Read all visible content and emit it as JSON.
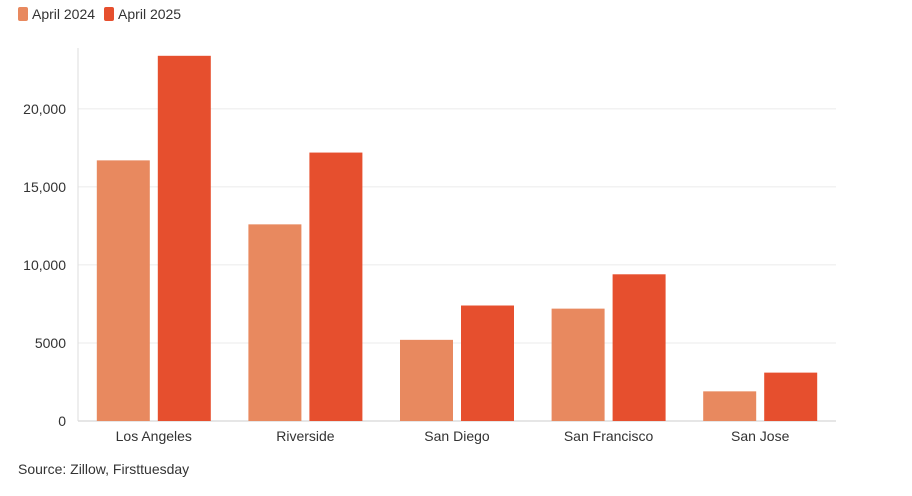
{
  "legend": [
    {
      "label": "April 2024",
      "color": "#e8895f"
    },
    {
      "label": "April 2025",
      "color": "#e64f2e"
    }
  ],
  "source": "Source: Zillow, Firsttuesday",
  "chart_data": {
    "type": "bar",
    "categories": [
      "Los Angeles",
      "Riverside",
      "San Diego",
      "San Francisco",
      "San Jose"
    ],
    "series": [
      {
        "name": "April 2024",
        "values": [
          16700,
          12600,
          5200,
          7200,
          1900
        ],
        "color": "#e8895f"
      },
      {
        "name": "April 2025",
        "values": [
          23400,
          17200,
          7400,
          9400,
          3100
        ],
        "color": "#e64f2e"
      }
    ],
    "yticks": [
      0,
      5000,
      10000,
      15000,
      20000
    ],
    "ytick_labels": [
      "0",
      "5000",
      "10,000",
      "15,000",
      "20,000"
    ],
    "ylim": [
      0,
      23900
    ],
    "grid": true,
    "legend_position": "top-left"
  }
}
